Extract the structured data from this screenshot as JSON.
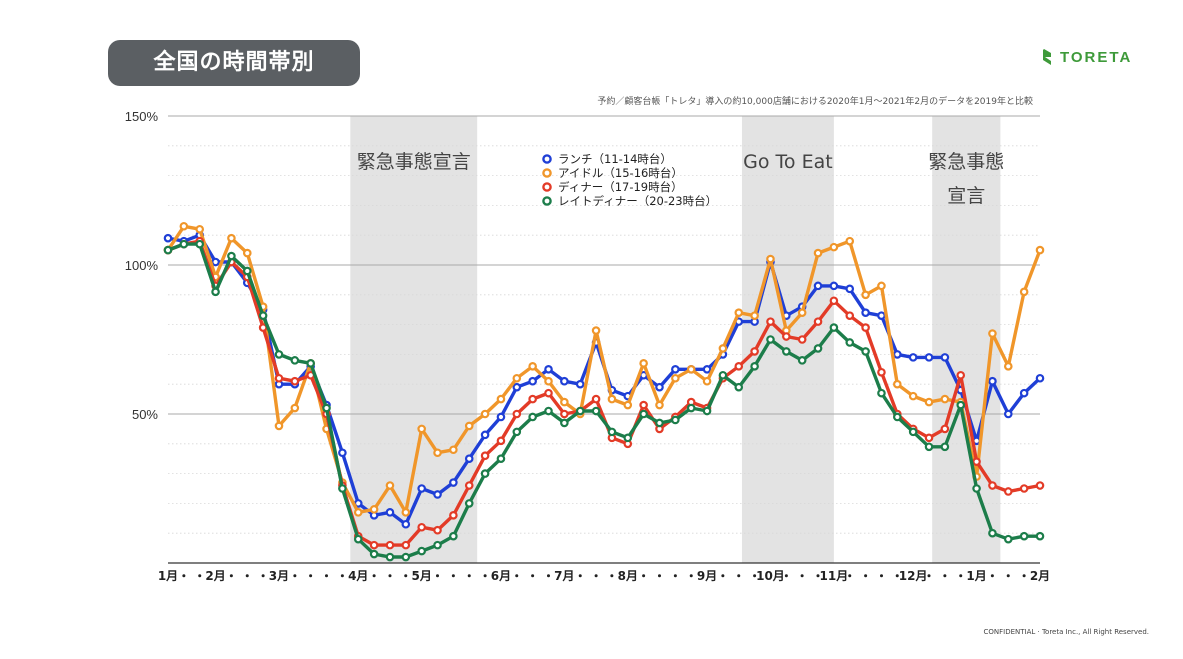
{
  "header": {
    "title": "全国の時間帯別",
    "logo_text": "TORETA",
    "subtitle": "予約／顧客台帳「トレタ」導入の約10,000店舗における2020年1月〜2021年2月のデータを2019年と比較"
  },
  "footer": {
    "confidential": "CONFIDENTIAL · Toreta Inc., All Right Reserved."
  },
  "colors": {
    "grid": "#c9c9c9",
    "shade": "#e3e3e3",
    "pill": "#5b5f63",
    "logo": "#3e9a3a"
  },
  "chart_data": {
    "type": "line",
    "ylim": [
      0,
      150
    ],
    "y_ticks": [
      50,
      100,
      150
    ],
    "y_tick_labels": [
      "50%",
      "100%",
      "150%"
    ],
    "grid": true,
    "legend_position": "top-center",
    "x_labels": [
      "1月・・2月・・・3月・・・・4月・・・5月・・・・6月・・・7月・・・8月・・・・9月・・・10月・・・11月・・・・12月・・・1月・・・2月"
    ],
    "month_labels": [
      {
        "i": 0,
        "label": "1月"
      },
      {
        "i": 3,
        "label": "2月"
      },
      {
        "i": 7,
        "label": "3月"
      },
      {
        "i": 12,
        "label": "4月"
      },
      {
        "i": 16,
        "label": "5月"
      },
      {
        "i": 21,
        "label": "6月"
      },
      {
        "i": 25,
        "label": "7月"
      },
      {
        "i": 29,
        "label": "8月"
      },
      {
        "i": 34,
        "label": "9月"
      },
      {
        "i": 38,
        "label": "10月"
      },
      {
        "i": 42,
        "label": "11月"
      },
      {
        "i": 47,
        "label": "12月"
      },
      {
        "i": 51,
        "label": "1月"
      },
      {
        "i": 55,
        "label": "2月"
      }
    ],
    "shaded_periods": [
      {
        "start": 11.5,
        "end": 19.5,
        "label_lines": [
          "緊急事態宣言"
        ]
      },
      {
        "start": 36.2,
        "end": 42.0,
        "label_lines": [
          "Go To Eat"
        ]
      },
      {
        "start": 48.2,
        "end": 52.5,
        "label_lines": [
          "緊急事態",
          "宣言"
        ]
      }
    ],
    "series": [
      {
        "name": "ランチ（11-14時台）",
        "color": "#1f3fd6",
        "values": [
          109,
          108,
          110,
          101,
          101,
          94,
          85,
          60,
          60,
          66,
          53,
          37,
          20,
          16,
          17,
          13,
          25,
          23,
          27,
          35,
          43,
          49,
          59,
          61,
          65,
          61,
          60,
          74,
          58,
          56,
          63,
          59,
          65,
          65,
          65,
          70,
          81,
          81,
          101,
          83,
          86,
          93,
          93,
          92,
          84,
          83,
          70,
          69,
          69,
          69,
          58,
          41,
          61,
          50,
          57,
          62
        ]
      },
      {
        "name": "アイドル（15-16時台）",
        "color": "#f0962a",
        "values": [
          105,
          113,
          112,
          96,
          109,
          104,
          86,
          46,
          52,
          67,
          45,
          27,
          17,
          18,
          26,
          17,
          45,
          37,
          38,
          46,
          50,
          55,
          62,
          66,
          61,
          54,
          50,
          78,
          55,
          53,
          67,
          53,
          62,
          65,
          61,
          72,
          84,
          83,
          102,
          78,
          84,
          104,
          106,
          108,
          90,
          93,
          60,
          56,
          54,
          55,
          54,
          29,
          77,
          66,
          91,
          105
        ]
      },
      {
        "name": "ディナー（17-19時台）",
        "color": "#e33b27",
        "values": [
          105,
          107,
          108,
          93,
          101,
          96,
          79,
          62,
          61,
          63,
          50,
          26,
          9,
          6,
          6,
          6,
          12,
          11,
          16,
          26,
          36,
          41,
          50,
          55,
          57,
          50,
          51,
          55,
          42,
          40,
          53,
          45,
          49,
          54,
          52,
          62,
          66,
          71,
          81,
          76,
          75,
          81,
          88,
          83,
          79,
          64,
          50,
          45,
          42,
          45,
          63,
          34,
          26,
          24,
          25,
          26
        ]
      },
      {
        "name": "レイトディナー（20-23時台）",
        "color": "#1c7d4a",
        "values": [
          105,
          107,
          107,
          91,
          103,
          98,
          83,
          70,
          68,
          67,
          52,
          25,
          8,
          3,
          2,
          2,
          4,
          6,
          9,
          20,
          30,
          35,
          44,
          49,
          51,
          47,
          51,
          51,
          44,
          42,
          50,
          47,
          48,
          52,
          51,
          63,
          59,
          66,
          75,
          71,
          68,
          72,
          79,
          74,
          71,
          57,
          49,
          44,
          39,
          39,
          53,
          25,
          10,
          8,
          9,
          9
        ]
      }
    ]
  }
}
